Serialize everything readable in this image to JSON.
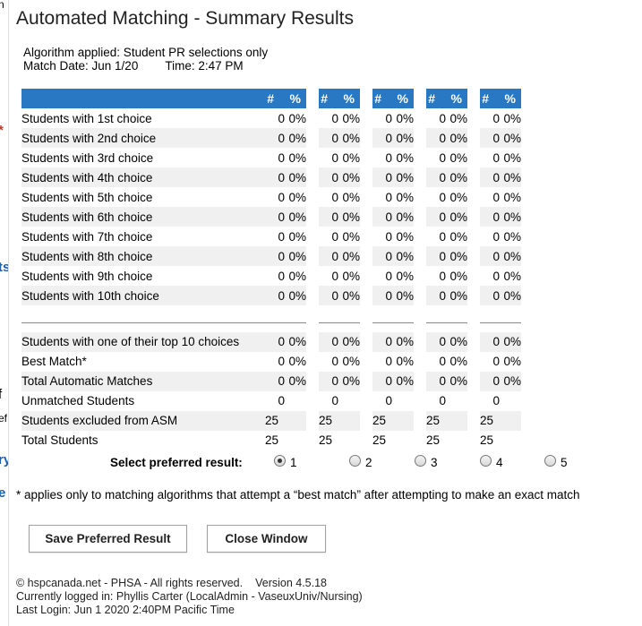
{
  "edge_glyphs": [
    "n",
    "*",
    "ts",
    "f",
    "ef",
    "ry",
    "e"
  ],
  "title": "Automated Matching - Summary Results",
  "meta": {
    "algorithm": "Algorithm applied: Student PR selections only",
    "match_date": "Match Date: Jun 1/20",
    "time": "Time: 2:47 PM"
  },
  "table": {
    "header_num": "#",
    "header_pct": "%",
    "choice_rows": [
      {
        "label": "Students with 1st choice",
        "cells": [
          [
            "0",
            "0%"
          ],
          [
            "0",
            "0%"
          ],
          [
            "0",
            "0%"
          ],
          [
            "0",
            "0%"
          ],
          [
            "0",
            "0%"
          ]
        ]
      },
      {
        "label": "Students with 2nd choice",
        "cells": [
          [
            "0",
            "0%"
          ],
          [
            "0",
            "0%"
          ],
          [
            "0",
            "0%"
          ],
          [
            "0",
            "0%"
          ],
          [
            "0",
            "0%"
          ]
        ]
      },
      {
        "label": "Students with 3rd choice",
        "cells": [
          [
            "0",
            "0%"
          ],
          [
            "0",
            "0%"
          ],
          [
            "0",
            "0%"
          ],
          [
            "0",
            "0%"
          ],
          [
            "0",
            "0%"
          ]
        ]
      },
      {
        "label": "Students with 4th choice",
        "cells": [
          [
            "0",
            "0%"
          ],
          [
            "0",
            "0%"
          ],
          [
            "0",
            "0%"
          ],
          [
            "0",
            "0%"
          ],
          [
            "0",
            "0%"
          ]
        ]
      },
      {
        "label": "Students with 5th choice",
        "cells": [
          [
            "0",
            "0%"
          ],
          [
            "0",
            "0%"
          ],
          [
            "0",
            "0%"
          ],
          [
            "0",
            "0%"
          ],
          [
            "0",
            "0%"
          ]
        ]
      },
      {
        "label": "Students with 6th choice",
        "cells": [
          [
            "0",
            "0%"
          ],
          [
            "0",
            "0%"
          ],
          [
            "0",
            "0%"
          ],
          [
            "0",
            "0%"
          ],
          [
            "0",
            "0%"
          ]
        ]
      },
      {
        "label": "Students with 7th choice",
        "cells": [
          [
            "0",
            "0%"
          ],
          [
            "0",
            "0%"
          ],
          [
            "0",
            "0%"
          ],
          [
            "0",
            "0%"
          ],
          [
            "0",
            "0%"
          ]
        ]
      },
      {
        "label": "Students with 8th choice",
        "cells": [
          [
            "0",
            "0%"
          ],
          [
            "0",
            "0%"
          ],
          [
            "0",
            "0%"
          ],
          [
            "0",
            "0%"
          ],
          [
            "0",
            "0%"
          ]
        ]
      },
      {
        "label": "Students with 9th choice",
        "cells": [
          [
            "0",
            "0%"
          ],
          [
            "0",
            "0%"
          ],
          [
            "0",
            "0%"
          ],
          [
            "0",
            "0%"
          ],
          [
            "0",
            "0%"
          ]
        ]
      },
      {
        "label": "Students with 10th choice",
        "cells": [
          [
            "0",
            "0%"
          ],
          [
            "0",
            "0%"
          ],
          [
            "0",
            "0%"
          ],
          [
            "0",
            "0%"
          ],
          [
            "0",
            "0%"
          ]
        ]
      }
    ],
    "summary_rows": [
      {
        "label": "Students with one of their top 10 choices",
        "cells": [
          [
            "0",
            "0%"
          ],
          [
            "0",
            "0%"
          ],
          [
            "0",
            "0%"
          ],
          [
            "0",
            "0%"
          ],
          [
            "0",
            "0%"
          ]
        ]
      },
      {
        "label": "Best Match*",
        "cells": [
          [
            "0",
            "0%"
          ],
          [
            "0",
            "0%"
          ],
          [
            "0",
            "0%"
          ],
          [
            "0",
            "0%"
          ],
          [
            "0",
            "0%"
          ]
        ]
      },
      {
        "label": "Total Automatic Matches",
        "cells": [
          [
            "0",
            "0%"
          ],
          [
            "0",
            "0%"
          ],
          [
            "0",
            "0%"
          ],
          [
            "0",
            "0%"
          ],
          [
            "0",
            "0%"
          ]
        ]
      },
      {
        "label": "Unmatched Students",
        "cells": [
          [
            "0",
            ""
          ],
          [
            "0",
            ""
          ],
          [
            "0",
            ""
          ],
          [
            "0",
            ""
          ],
          [
            "0",
            ""
          ]
        ]
      },
      {
        "label": "Students excluded from ASM",
        "cells": [
          [
            "25",
            ""
          ],
          [
            "25",
            ""
          ],
          [
            "25",
            ""
          ],
          [
            "25",
            ""
          ],
          [
            "25",
            ""
          ]
        ]
      },
      {
        "label": "Total Students",
        "cells": [
          [
            "25",
            ""
          ],
          [
            "25",
            ""
          ],
          [
            "25",
            ""
          ],
          [
            "25",
            ""
          ],
          [
            "25",
            ""
          ]
        ]
      }
    ]
  },
  "preferred": {
    "label": "Select preferred result:",
    "options": [
      "1",
      "2",
      "3",
      "4",
      "5"
    ],
    "selected": "1"
  },
  "note": "* applies only to matching algorithms that attempt a “best match” after attempting to make an exact match",
  "buttons": {
    "save": "Save Preferred Result",
    "close": "Close Window"
  },
  "footer": {
    "copyright": "© hspcanada.net - PHSA - All rights reserved.",
    "version": "Version 4.5.18",
    "logged_in": "Currently logged in: Phyllis Carter (LocalAdmin - VaseuxUniv/Nursing)",
    "last_login": "Last Login: Jun  1 2020  2:40PM Pacific Time"
  }
}
